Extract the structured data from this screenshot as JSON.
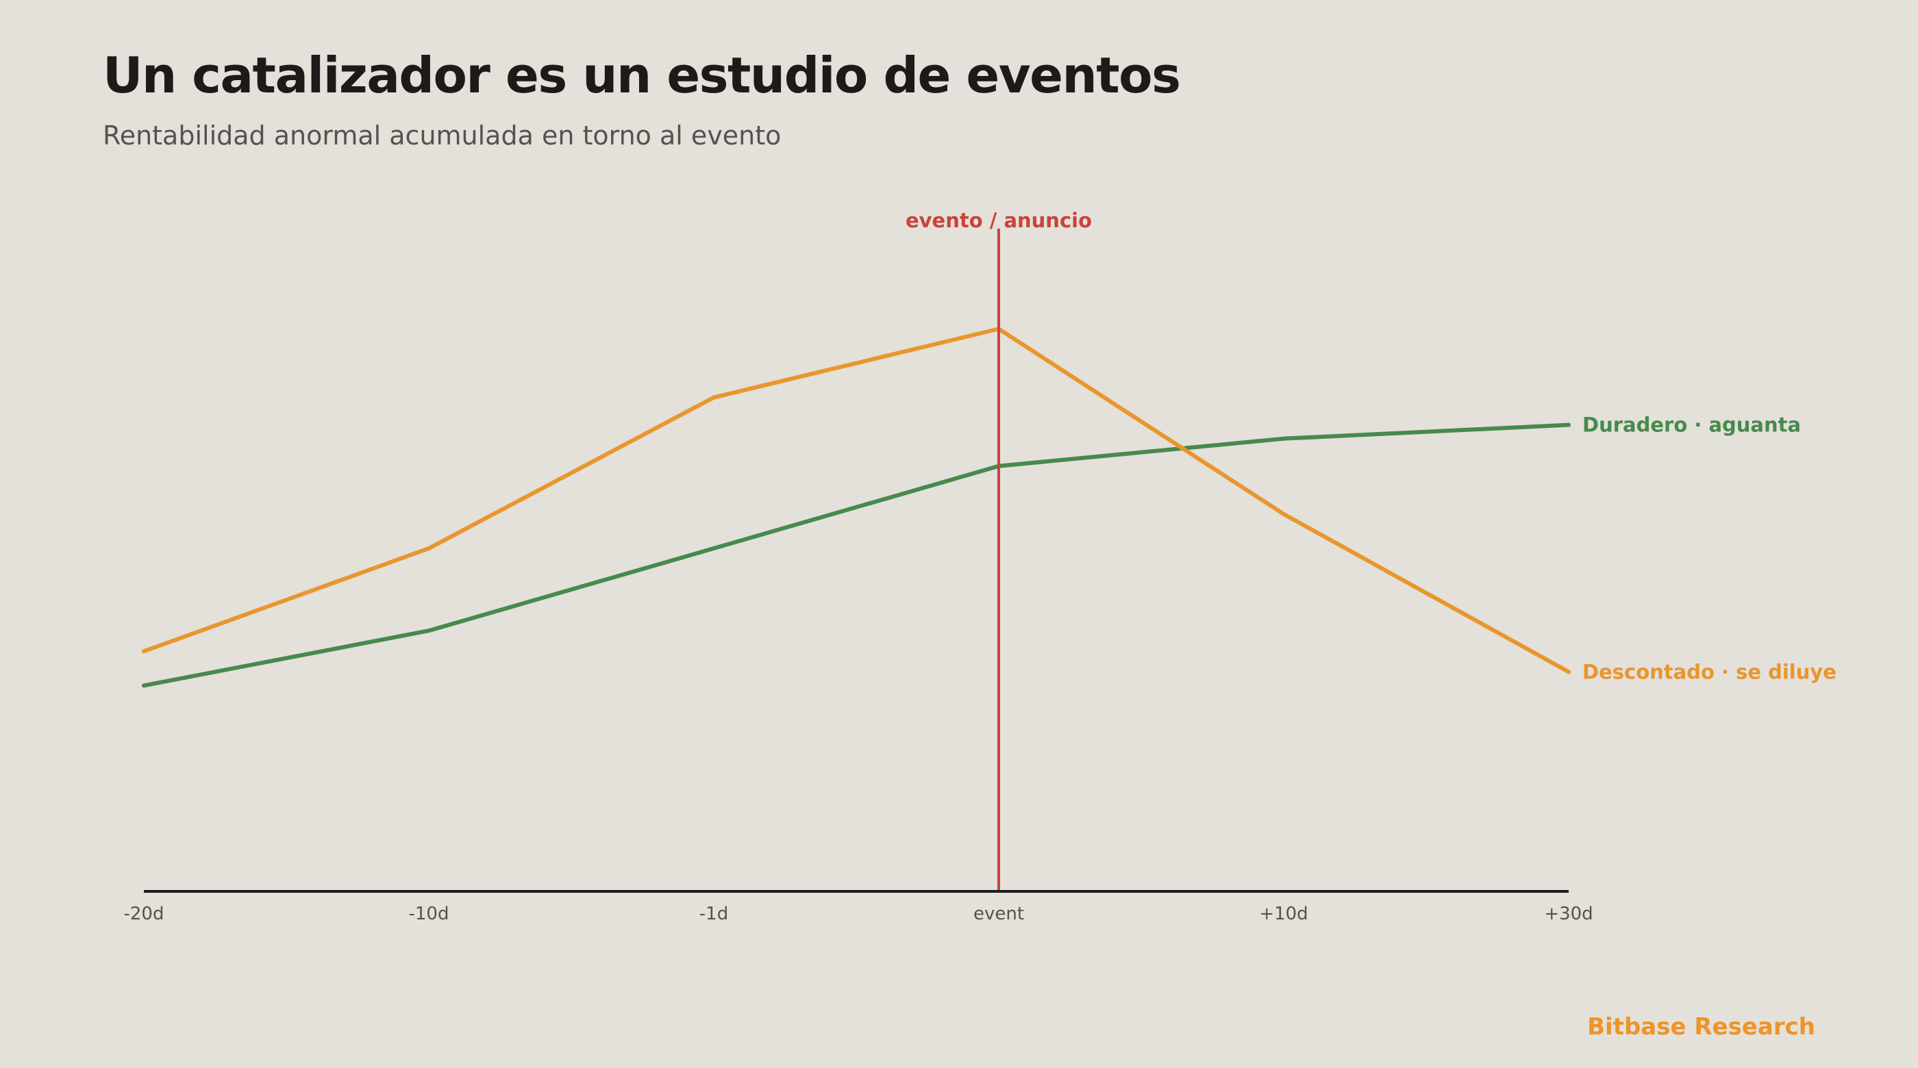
{
  "title": "Un catalizador es un estudio de eventos",
  "subtitle": "Rentabilidad anormal acumulada en torno al evento",
  "brand": "Bitbase Research",
  "colors": {
    "background": "#e4e0da",
    "orange": "#e8962e",
    "green": "#478a4c",
    "event": "#c8443a",
    "axis": "#1c1b1a",
    "brand": "#ee9428"
  },
  "chart_data": {
    "type": "line",
    "categories": [
      "-20d",
      "-10d",
      "-1d",
      "event",
      "+10d",
      "+30d"
    ],
    "ylim": [
      0,
      10
    ],
    "grid": false,
    "event_marker": {
      "category": "event",
      "label": "evento / anuncio"
    },
    "series": [
      {
        "name": "Duradero · aguanta",
        "color": "#478a4c",
        "values": [
          3.0,
          3.8,
          5.0,
          6.2,
          6.6,
          6.8
        ]
      },
      {
        "name": "Descontado · se diluye",
        "color": "#e8962e",
        "values": [
          3.5,
          5.0,
          7.2,
          8.2,
          5.5,
          3.2
        ]
      }
    ]
  }
}
